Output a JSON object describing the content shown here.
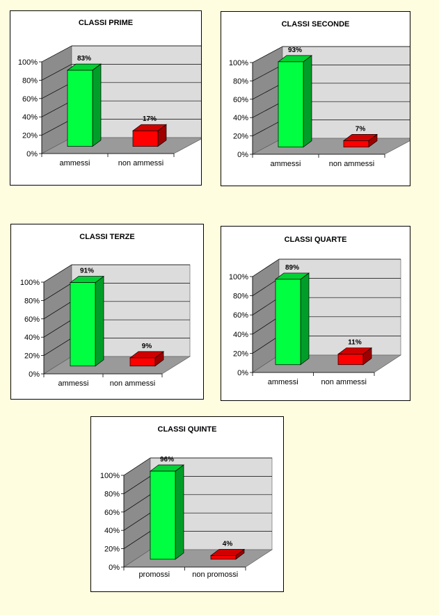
{
  "colors": {
    "page_background": "#fffde0",
    "bar_admitted": "#00ff40",
    "bar_not_admitted": "#ff0000",
    "wall": "#d3d3d3",
    "floor": "#9a9a9a"
  },
  "chart_data": [
    {
      "type": "bar",
      "title": "CLASSI PRIME",
      "categories": [
        "ammessi",
        "non ammessi"
      ],
      "values": [
        83,
        17
      ],
      "value_labels": [
        "83%",
        "17%"
      ],
      "ylim": [
        0,
        100
      ],
      "yticks": [
        "0%",
        "20%",
        "40%",
        "60%",
        "80%",
        "100%"
      ],
      "grid": true,
      "style": "3d-column"
    },
    {
      "type": "bar",
      "title": "CLASSI SECONDE",
      "categories": [
        "ammessi",
        "non ammessi"
      ],
      "values": [
        93,
        7
      ],
      "value_labels": [
        "93%",
        "7%"
      ],
      "ylim": [
        0,
        100
      ],
      "yticks": [
        "0%",
        "20%",
        "40%",
        "60%",
        "80%",
        "100%"
      ],
      "grid": true,
      "style": "3d-column"
    },
    {
      "type": "bar",
      "title": "CLASSI TERZE",
      "categories": [
        "ammessi",
        "non ammessi"
      ],
      "values": [
        91,
        9
      ],
      "value_labels": [
        "91%",
        "9%"
      ],
      "ylim": [
        0,
        100
      ],
      "yticks": [
        "0%",
        "20%",
        "40%",
        "60%",
        "80%",
        "100%"
      ],
      "grid": true,
      "style": "3d-column"
    },
    {
      "type": "bar",
      "title": "CLASSI QUARTE",
      "categories": [
        "ammessi",
        "non ammessi"
      ],
      "values": [
        89,
        11
      ],
      "value_labels": [
        "89%",
        "11%"
      ],
      "ylim": [
        0,
        100
      ],
      "yticks": [
        "0%",
        "20%",
        "40%",
        "60%",
        "80%",
        "100%"
      ],
      "grid": true,
      "style": "3d-column"
    },
    {
      "type": "bar",
      "title": "CLASSI QUINTE",
      "categories": [
        "promossi",
        "non promossi"
      ],
      "values": [
        96,
        4
      ],
      "value_labels": [
        "96%",
        "4%"
      ],
      "ylim": [
        0,
        100
      ],
      "yticks": [
        "0%",
        "20%",
        "40%",
        "60%",
        "80%",
        "100%"
      ],
      "grid": true,
      "style": "3d-column"
    }
  ]
}
